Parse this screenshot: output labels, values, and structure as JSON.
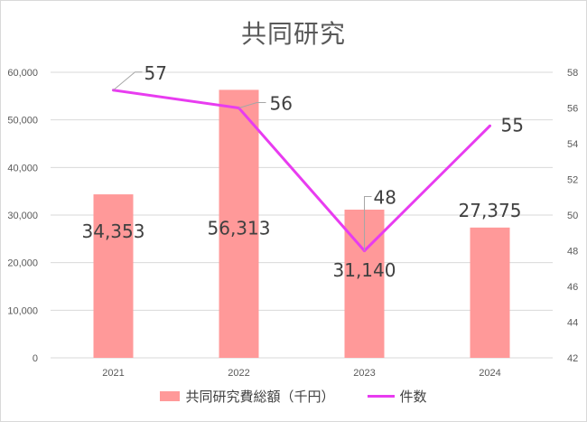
{
  "chart_data": {
    "type": "bar",
    "title": "共同研究",
    "categories": [
      "2021",
      "2022",
      "2023",
      "2024"
    ],
    "series": [
      {
        "name": "共同研究費総額（千円）",
        "type": "bar",
        "axis": "left",
        "values": [
          34353,
          56313,
          31140,
          27375
        ],
        "labels": [
          "34,353",
          "56,313",
          "31,140",
          "27,375"
        ],
        "color": "#ff9999"
      },
      {
        "name": "件数",
        "type": "line",
        "axis": "right",
        "values": [
          57,
          56,
          48,
          55
        ],
        "labels": [
          "57",
          "56",
          "48",
          "55"
        ],
        "color": "#e83cf0"
      }
    ],
    "y_left": {
      "lim": [
        0,
        60000
      ],
      "ticks": [
        0,
        10000,
        20000,
        30000,
        40000,
        50000,
        60000
      ],
      "tick_labels": [
        "0",
        "10,000",
        "20,000",
        "30,000",
        "40,000",
        "50,000",
        "60,000"
      ]
    },
    "y_right": {
      "lim": [
        42,
        58
      ],
      "ticks": [
        42,
        44,
        46,
        48,
        50,
        52,
        54,
        56,
        58
      ],
      "tick_labels": [
        "42",
        "44",
        "46",
        "48",
        "50",
        "52",
        "54",
        "56",
        "58"
      ]
    },
    "grid": true,
    "legend": "bottom",
    "colors": {
      "gridline": "#d9d9d9",
      "axis_text": "#595959",
      "label_text": "#404040"
    }
  }
}
